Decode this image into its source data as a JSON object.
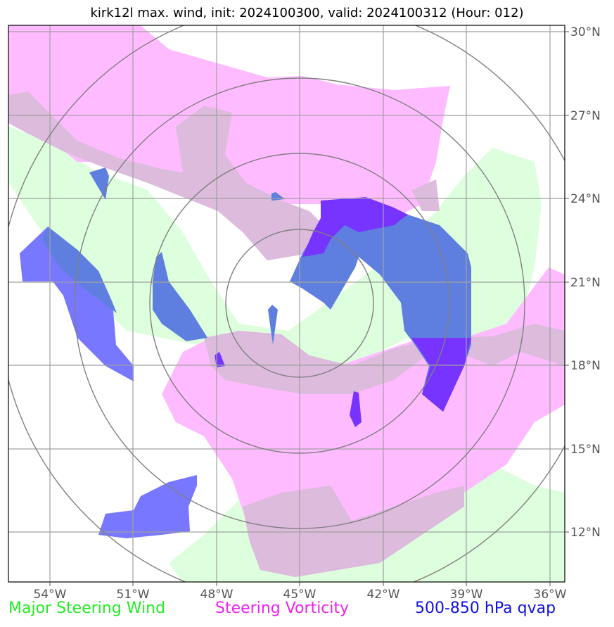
{
  "title": "kirk12l max. wind, init: 2024100300, valid: 2024100312 (Hour: 012)",
  "lon_ticks": [
    "54°W",
    "51°W",
    "48°W",
    "45°W",
    "42°W",
    "39°W",
    "36°W"
  ],
  "lat_ticks": [
    "30°N",
    "27°N",
    "24°N",
    "21°N",
    "18°N",
    "15°N",
    "12°N"
  ],
  "legend": [
    {
      "label": "Major Steering Wind",
      "color": "#22ee22"
    },
    {
      "label": "Steering Vorticity",
      "color": "#ee22ee"
    },
    {
      "label": "500-850 hPa qvap",
      "color": "#1111dd"
    }
  ],
  "colors": {
    "steering_wind_fill": "#ddffdd",
    "vorticity_fill": "#ffbbff",
    "overlap_fill": "#ddbbdd",
    "qvap_fill": "#7777ff",
    "qvap_mid_fill": "#5f7fe0",
    "qvap_strong_fill": "#7733ff",
    "range_rings": "#808080",
    "gridlines": "#a0a0a0"
  },
  "storm_center": {
    "lon": -45.0,
    "lat": 20.1
  }
}
